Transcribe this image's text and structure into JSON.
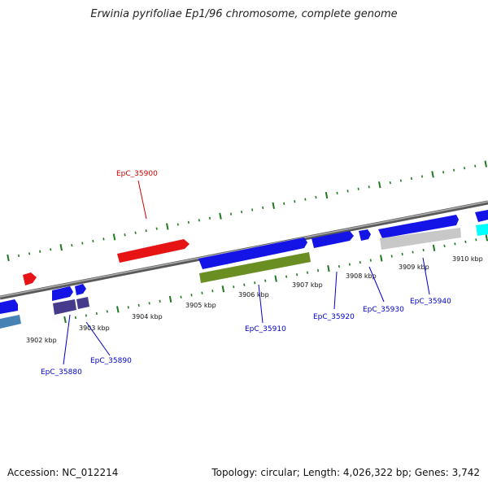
{
  "title": "Erwinia pyrifoliae Ep1/96 chromosome, complete genome",
  "accession": "Accession: NC_012214",
  "summary": "Topology: circular; Length: 4,026,322 bp; Genes: 3,742",
  "colors": {
    "backbone": "#7a7a7a",
    "ticks": "#1f7a1f",
    "forward_gene": "#1414e6",
    "highlight_gene": "#e61414",
    "cds_olive": "#6b8e23",
    "cds_purple": "#463a8c",
    "cds_steel": "#4682b4",
    "cds_cyan": "#00ffff",
    "cds_grey": "#c8c8c8",
    "label_blue": "#0000cc",
    "label_red": "#cc0000"
  },
  "scale_labels": [
    "3902 kbp",
    "3903 kbp",
    "3904 kbp",
    "3905 kbp",
    "3906 kbp",
    "3907 kbp",
    "3908 kbp",
    "3909 kbp",
    "3910 kbp"
  ],
  "gene_labels": [
    {
      "text": "EpC_35900",
      "color": "red"
    },
    {
      "text": "EpC_35880",
      "color": "blue"
    },
    {
      "text": "EpC_35890",
      "color": "blue"
    },
    {
      "text": "EpC_35910",
      "color": "blue"
    },
    {
      "text": "EpC_35920",
      "color": "blue"
    },
    {
      "text": "EpC_35930",
      "color": "blue"
    },
    {
      "text": "EpC_35940",
      "color": "blue"
    }
  ]
}
